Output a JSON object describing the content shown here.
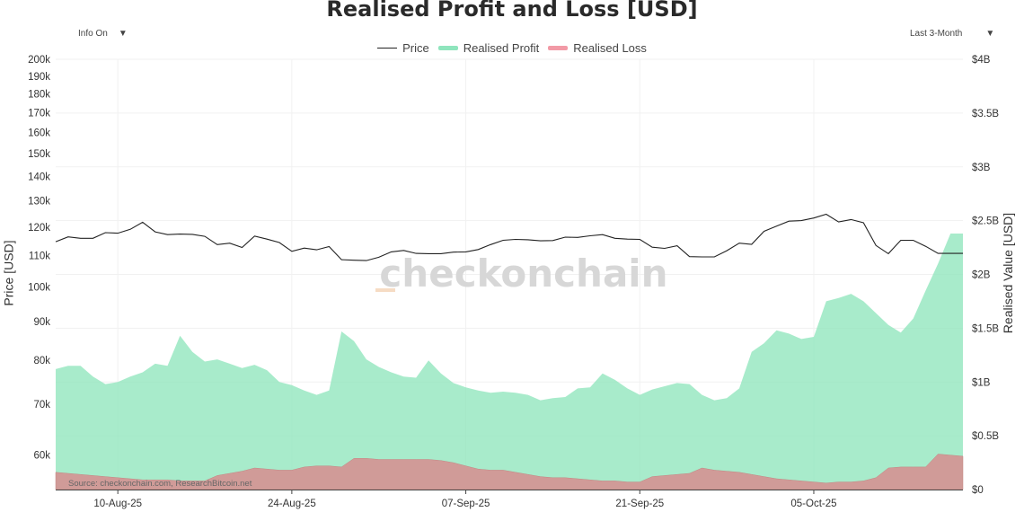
{
  "header": {
    "title": "Realised Profit and Loss [USD]",
    "info_dropdown": "Info On",
    "range_dropdown": "Last 3-Month",
    "caret": "▼"
  },
  "legend": [
    {
      "label": "Price",
      "color": "#222222",
      "kind": "line"
    },
    {
      "label": "Realised Profit",
      "color": "#8fe5bd",
      "kind": "area"
    },
    {
      "label": "Realised Loss",
      "color": "#f29aa6",
      "kind": "area"
    }
  ],
  "watermark": "checkonchain",
  "source": "Source: checkonchain.com, ResearchBitcoin.net",
  "chart_data": {
    "type": "line",
    "x": [
      "2025-08-05",
      "2025-08-06",
      "2025-08-07",
      "2025-08-08",
      "2025-08-09",
      "2025-08-10",
      "2025-08-11",
      "2025-08-12",
      "2025-08-13",
      "2025-08-14",
      "2025-08-15",
      "2025-08-16",
      "2025-08-17",
      "2025-08-18",
      "2025-08-19",
      "2025-08-20",
      "2025-08-21",
      "2025-08-22",
      "2025-08-23",
      "2025-08-24",
      "2025-08-25",
      "2025-08-26",
      "2025-08-27",
      "2025-08-28",
      "2025-08-29",
      "2025-08-30",
      "2025-08-31",
      "2025-09-01",
      "2025-09-02",
      "2025-09-03",
      "2025-09-04",
      "2025-09-05",
      "2025-09-06",
      "2025-09-07",
      "2025-09-08",
      "2025-09-09",
      "2025-09-10",
      "2025-09-11",
      "2025-09-12",
      "2025-09-13",
      "2025-09-14",
      "2025-09-15",
      "2025-09-16",
      "2025-09-17",
      "2025-09-18",
      "2025-09-19",
      "2025-09-20",
      "2025-09-21",
      "2025-09-22",
      "2025-09-23",
      "2025-09-24",
      "2025-09-25",
      "2025-09-26",
      "2025-09-27",
      "2025-09-28",
      "2025-09-29",
      "2025-09-30",
      "2025-10-01",
      "2025-10-02",
      "2025-10-03",
      "2025-10-04",
      "2025-10-05",
      "2025-10-06",
      "2025-10-07",
      "2025-10-08",
      "2025-10-09",
      "2025-10-10",
      "2025-10-11",
      "2025-10-12",
      "2025-10-13",
      "2025-10-14",
      "2025-10-15",
      "2025-10-16",
      "2025-10-17"
    ],
    "series": [
      {
        "name": "Price",
        "axis": "left",
        "unit": "USD",
        "values": [
          114800,
          116500,
          116000,
          116000,
          118000,
          117800,
          119200,
          121800,
          118300,
          117300,
          117500,
          117400,
          116700,
          113800,
          114300,
          112800,
          116800,
          115700,
          114500,
          111500,
          112600,
          112000,
          113100,
          108700,
          108500,
          108400,
          109500,
          111300,
          111800,
          110800,
          110700,
          110700,
          111200,
          111300,
          112100,
          113800,
          115300,
          115600,
          115500,
          115100,
          115200,
          116400,
          116300,
          116900,
          117300,
          116000,
          115700,
          115600,
          112900,
          112500,
          113400,
          109700,
          109600,
          109600,
          111700,
          114300,
          113900,
          118500,
          120400,
          122200,
          122400,
          123400,
          124800,
          121900,
          122800,
          121600,
          113500,
          110700,
          115300,
          115300,
          113200,
          110800,
          110800,
          110800
        ]
      },
      {
        "name": "Realised Profit",
        "axis": "right",
        "unit": "USD",
        "values": [
          1120000000.0,
          1150000000.0,
          1150000000.0,
          1050000000.0,
          980000000.0,
          1000000000.0,
          1050000000.0,
          1090000000.0,
          1170000000.0,
          1150000000.0,
          1430000000.0,
          1280000000.0,
          1190000000.0,
          1210000000.0,
          1170000000.0,
          1130000000.0,
          1160000000.0,
          1110000000.0,
          1000000000.0,
          970000000.0,
          920000000.0,
          880000000.0,
          920000000.0,
          1470000000.0,
          1380000000.0,
          1210000000.0,
          1140000000.0,
          1090000000.0,
          1050000000.0,
          1040000000.0,
          1200000000.0,
          1080000000.0,
          990000000.0,
          950000000.0,
          920000000.0,
          900000000.0,
          910000000.0,
          900000000.0,
          880000000.0,
          830000000.0,
          850000000.0,
          860000000.0,
          940000000.0,
          950000000.0,
          1080000000.0,
          1020000000.0,
          940000000.0,
          880000000.0,
          930000000.0,
          960000000.0,
          990000000.0,
          980000000.0,
          880000000.0,
          830000000.0,
          850000000.0,
          940000000.0,
          1280000000.0,
          1360000000.0,
          1480000000.0,
          1450000000.0,
          1400000000.0,
          1420000000.0,
          1750000000.0,
          1780000000.0,
          1820000000.0,
          1750000000.0,
          1640000000.0,
          1530000000.0,
          1460000000.0,
          1590000000.0,
          1850000000.0,
          2100000000.0,
          2380000000.0,
          2380000000.0
        ]
      },
      {
        "name": "Realised Loss",
        "axis": "right",
        "unit": "USD",
        "values": [
          160000000.0,
          150000000.0,
          140000000.0,
          130000000.0,
          120000000.0,
          110000000.0,
          100000000.0,
          90000000.0,
          90000000.0,
          90000000.0,
          80000000.0,
          80000000.0,
          80000000.0,
          130000000.0,
          150000000.0,
          170000000.0,
          200000000.0,
          190000000.0,
          180000000.0,
          180000000.0,
          210000000.0,
          220000000.0,
          220000000.0,
          210000000.0,
          290000000.0,
          290000000.0,
          280000000.0,
          280000000.0,
          280000000.0,
          280000000.0,
          280000000.0,
          270000000.0,
          250000000.0,
          220000000.0,
          190000000.0,
          180000000.0,
          180000000.0,
          160000000.0,
          140000000.0,
          120000000.0,
          110000000.0,
          110000000.0,
          100000000.0,
          90000000.0,
          80000000.0,
          80000000.0,
          70000000.0,
          70000000.0,
          120000000.0,
          130000000.0,
          140000000.0,
          150000000.0,
          200000000.0,
          180000000.0,
          170000000.0,
          160000000.0,
          140000000.0,
          120000000.0,
          100000000.0,
          90000000.0,
          80000000.0,
          70000000.0,
          60000000.0,
          70000000.0,
          70000000.0,
          80000000.0,
          110000000.0,
          200000000.0,
          210000000.0,
          210000000.0,
          210000000.0,
          330000000.0,
          320000000.0,
          310000000.0
        ]
      }
    ],
    "x_ticks": [
      {
        "value": "2025-08-10",
        "label": "10-Aug-25"
      },
      {
        "value": "2025-08-24",
        "label": "24-Aug-25"
      },
      {
        "value": "2025-09-07",
        "label": "07-Sep-25"
      },
      {
        "value": "2025-09-21",
        "label": "21-Sep-25"
      },
      {
        "value": "2025-10-05",
        "label": "05-Oct-25"
      }
    ],
    "y_left": {
      "label": "Price [USD]",
      "scale": "log",
      "range": [
        54000,
        200000
      ],
      "ticks": [
        {
          "value": 60000,
          "label": "60k"
        },
        {
          "value": 70000,
          "label": "70k"
        },
        {
          "value": 80000,
          "label": "80k"
        },
        {
          "value": 90000,
          "label": "90k"
        },
        {
          "value": 100000,
          "label": "100k"
        },
        {
          "value": 110000,
          "label": "110k"
        },
        {
          "value": 120000,
          "label": "120k"
        },
        {
          "value": 130000,
          "label": "130k"
        },
        {
          "value": 140000,
          "label": "140k"
        },
        {
          "value": 150000,
          "label": "150k"
        },
        {
          "value": 160000,
          "label": "160k"
        },
        {
          "value": 170000,
          "label": "170k"
        },
        {
          "value": 180000,
          "label": "180k"
        },
        {
          "value": 190000,
          "label": "190k"
        },
        {
          "value": 200000,
          "label": "200k"
        }
      ]
    },
    "y_right": {
      "label": "Realised Value [USD]",
      "scale": "linear",
      "range": [
        0,
        4000000000
      ],
      "ticks": [
        {
          "value": 0,
          "label": "$0"
        },
        {
          "value": 500000000,
          "label": "$0.5B"
        },
        {
          "value": 1000000000,
          "label": "$1B"
        },
        {
          "value": 1500000000,
          "label": "$1.5B"
        },
        {
          "value": 2000000000,
          "label": "$2B"
        },
        {
          "value": 2500000000,
          "label": "$2.5B"
        },
        {
          "value": 3000000000,
          "label": "$3B"
        },
        {
          "value": 3500000000,
          "label": "$3.5B"
        },
        {
          "value": 4000000000,
          "label": "$4B"
        }
      ]
    },
    "grid": true,
    "legend_position": "top-center"
  }
}
